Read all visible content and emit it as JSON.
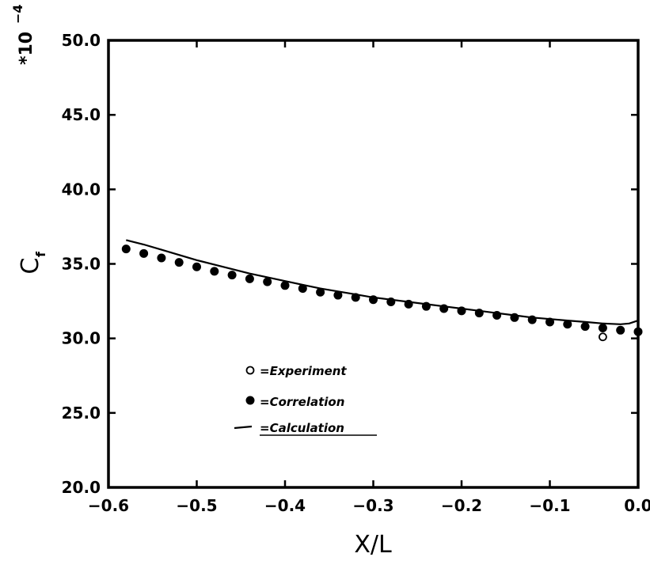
{
  "chart_data": {
    "type": "scatter",
    "title": "",
    "xlabel": "X/L",
    "ylabel_main": "C",
    "ylabel_sub": "f",
    "exponent_label": "*10",
    "exponent_power": "−4",
    "xlim": [
      -0.6,
      0.0
    ],
    "ylim": [
      20.0,
      50.0
    ],
    "x_ticks": [
      -0.6,
      -0.5,
      -0.4,
      -0.3,
      -0.2,
      -0.1,
      0.0
    ],
    "x_tick_labels": [
      "−0.6",
      "−0.5",
      "−0.4",
      "−0.3",
      "−0.2",
      "−0.1",
      "0.0"
    ],
    "y_ticks": [
      20.0,
      25.0,
      30.0,
      35.0,
      40.0,
      45.0,
      50.0
    ],
    "y_tick_labels": [
      "20.0",
      "25.0",
      "30.0",
      "35.0",
      "40.0",
      "45.0",
      "50.0"
    ],
    "grid": false,
    "legend_position": "lower-left",
    "series": [
      {
        "name": "=Experiment",
        "marker": "open-circle",
        "points": [
          [
            -0.04,
            30.1
          ]
        ]
      },
      {
        "name": "=Correlation",
        "marker": "filled-circle",
        "points": [
          [
            -0.58,
            36.0
          ],
          [
            -0.56,
            35.7
          ],
          [
            -0.54,
            35.4
          ],
          [
            -0.52,
            35.1
          ],
          [
            -0.5,
            34.8
          ],
          [
            -0.48,
            34.5
          ],
          [
            -0.46,
            34.25
          ],
          [
            -0.44,
            34.0
          ],
          [
            -0.42,
            33.8
          ],
          [
            -0.4,
            33.55
          ],
          [
            -0.38,
            33.35
          ],
          [
            -0.36,
            33.1
          ],
          [
            -0.34,
            32.9
          ],
          [
            -0.32,
            32.75
          ],
          [
            -0.3,
            32.6
          ],
          [
            -0.28,
            32.45
          ],
          [
            -0.26,
            32.3
          ],
          [
            -0.24,
            32.15
          ],
          [
            -0.22,
            32.0
          ],
          [
            -0.2,
            31.85
          ],
          [
            -0.18,
            31.7
          ],
          [
            -0.16,
            31.55
          ],
          [
            -0.14,
            31.4
          ],
          [
            -0.12,
            31.25
          ],
          [
            -0.1,
            31.1
          ],
          [
            -0.08,
            30.95
          ],
          [
            -0.06,
            30.8
          ],
          [
            -0.04,
            30.7
          ],
          [
            -0.02,
            30.55
          ],
          [
            0.0,
            30.45
          ]
        ]
      },
      {
        "name": "=Calculation",
        "marker": "line",
        "points": [
          [
            -0.58,
            36.6
          ],
          [
            -0.56,
            36.3
          ],
          [
            -0.54,
            35.95
          ],
          [
            -0.52,
            35.6
          ],
          [
            -0.5,
            35.25
          ],
          [
            -0.48,
            34.95
          ],
          [
            -0.46,
            34.65
          ],
          [
            -0.44,
            34.35
          ],
          [
            -0.42,
            34.1
          ],
          [
            -0.4,
            33.85
          ],
          [
            -0.38,
            33.6
          ],
          [
            -0.36,
            33.35
          ],
          [
            -0.34,
            33.15
          ],
          [
            -0.32,
            32.95
          ],
          [
            -0.3,
            32.75
          ],
          [
            -0.28,
            32.6
          ],
          [
            -0.26,
            32.45
          ],
          [
            -0.24,
            32.3
          ],
          [
            -0.22,
            32.15
          ],
          [
            -0.2,
            32.0
          ],
          [
            -0.18,
            31.85
          ],
          [
            -0.16,
            31.7
          ],
          [
            -0.14,
            31.55
          ],
          [
            -0.12,
            31.4
          ],
          [
            -0.1,
            31.3
          ],
          [
            -0.08,
            31.2
          ],
          [
            -0.06,
            31.1
          ],
          [
            -0.04,
            31.0
          ],
          [
            -0.02,
            30.95
          ],
          [
            -0.01,
            31.0
          ],
          [
            0.0,
            31.2
          ]
        ]
      }
    ]
  }
}
